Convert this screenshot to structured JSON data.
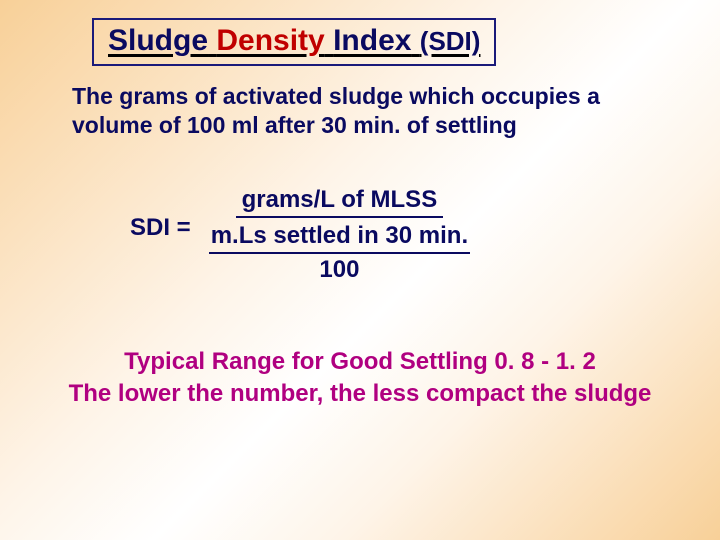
{
  "title": {
    "word1": "Sludge",
    "word2": "Density",
    "word3": "Index",
    "suffix": "(SDI)",
    "word1_color": "#0a0a60",
    "word2_color": "#c00000",
    "word3_color": "#0a0a60",
    "suffix_color": "#0a0a60",
    "border_color": "#1a1a7a",
    "fontsize": 30,
    "suffix_fontsize": 26
  },
  "definition": {
    "text": "The grams of activated sludge which occupies a volume of 100 ml after 30 min. of settling",
    "color": "#0a0a60",
    "fontsize": 23
  },
  "formula": {
    "lhs": "SDI =",
    "numerator": "grams/L of MLSS",
    "denominator_top": "m.Ls settled in 30 min.",
    "denominator_bottom": "100",
    "color": "#0a0a60",
    "fontsize": 24,
    "line_color": "#0a0a60"
  },
  "footer": {
    "line1": "Typical Range for Good Settling  0. 8 - 1. 2",
    "line2": "The lower the number, the less compact the sludge",
    "color": "#b00080",
    "fontsize": 24
  },
  "background": {
    "gradient_start": "#f8d098",
    "gradient_mid": "#ffffff",
    "gradient_end": "#f8d098"
  }
}
